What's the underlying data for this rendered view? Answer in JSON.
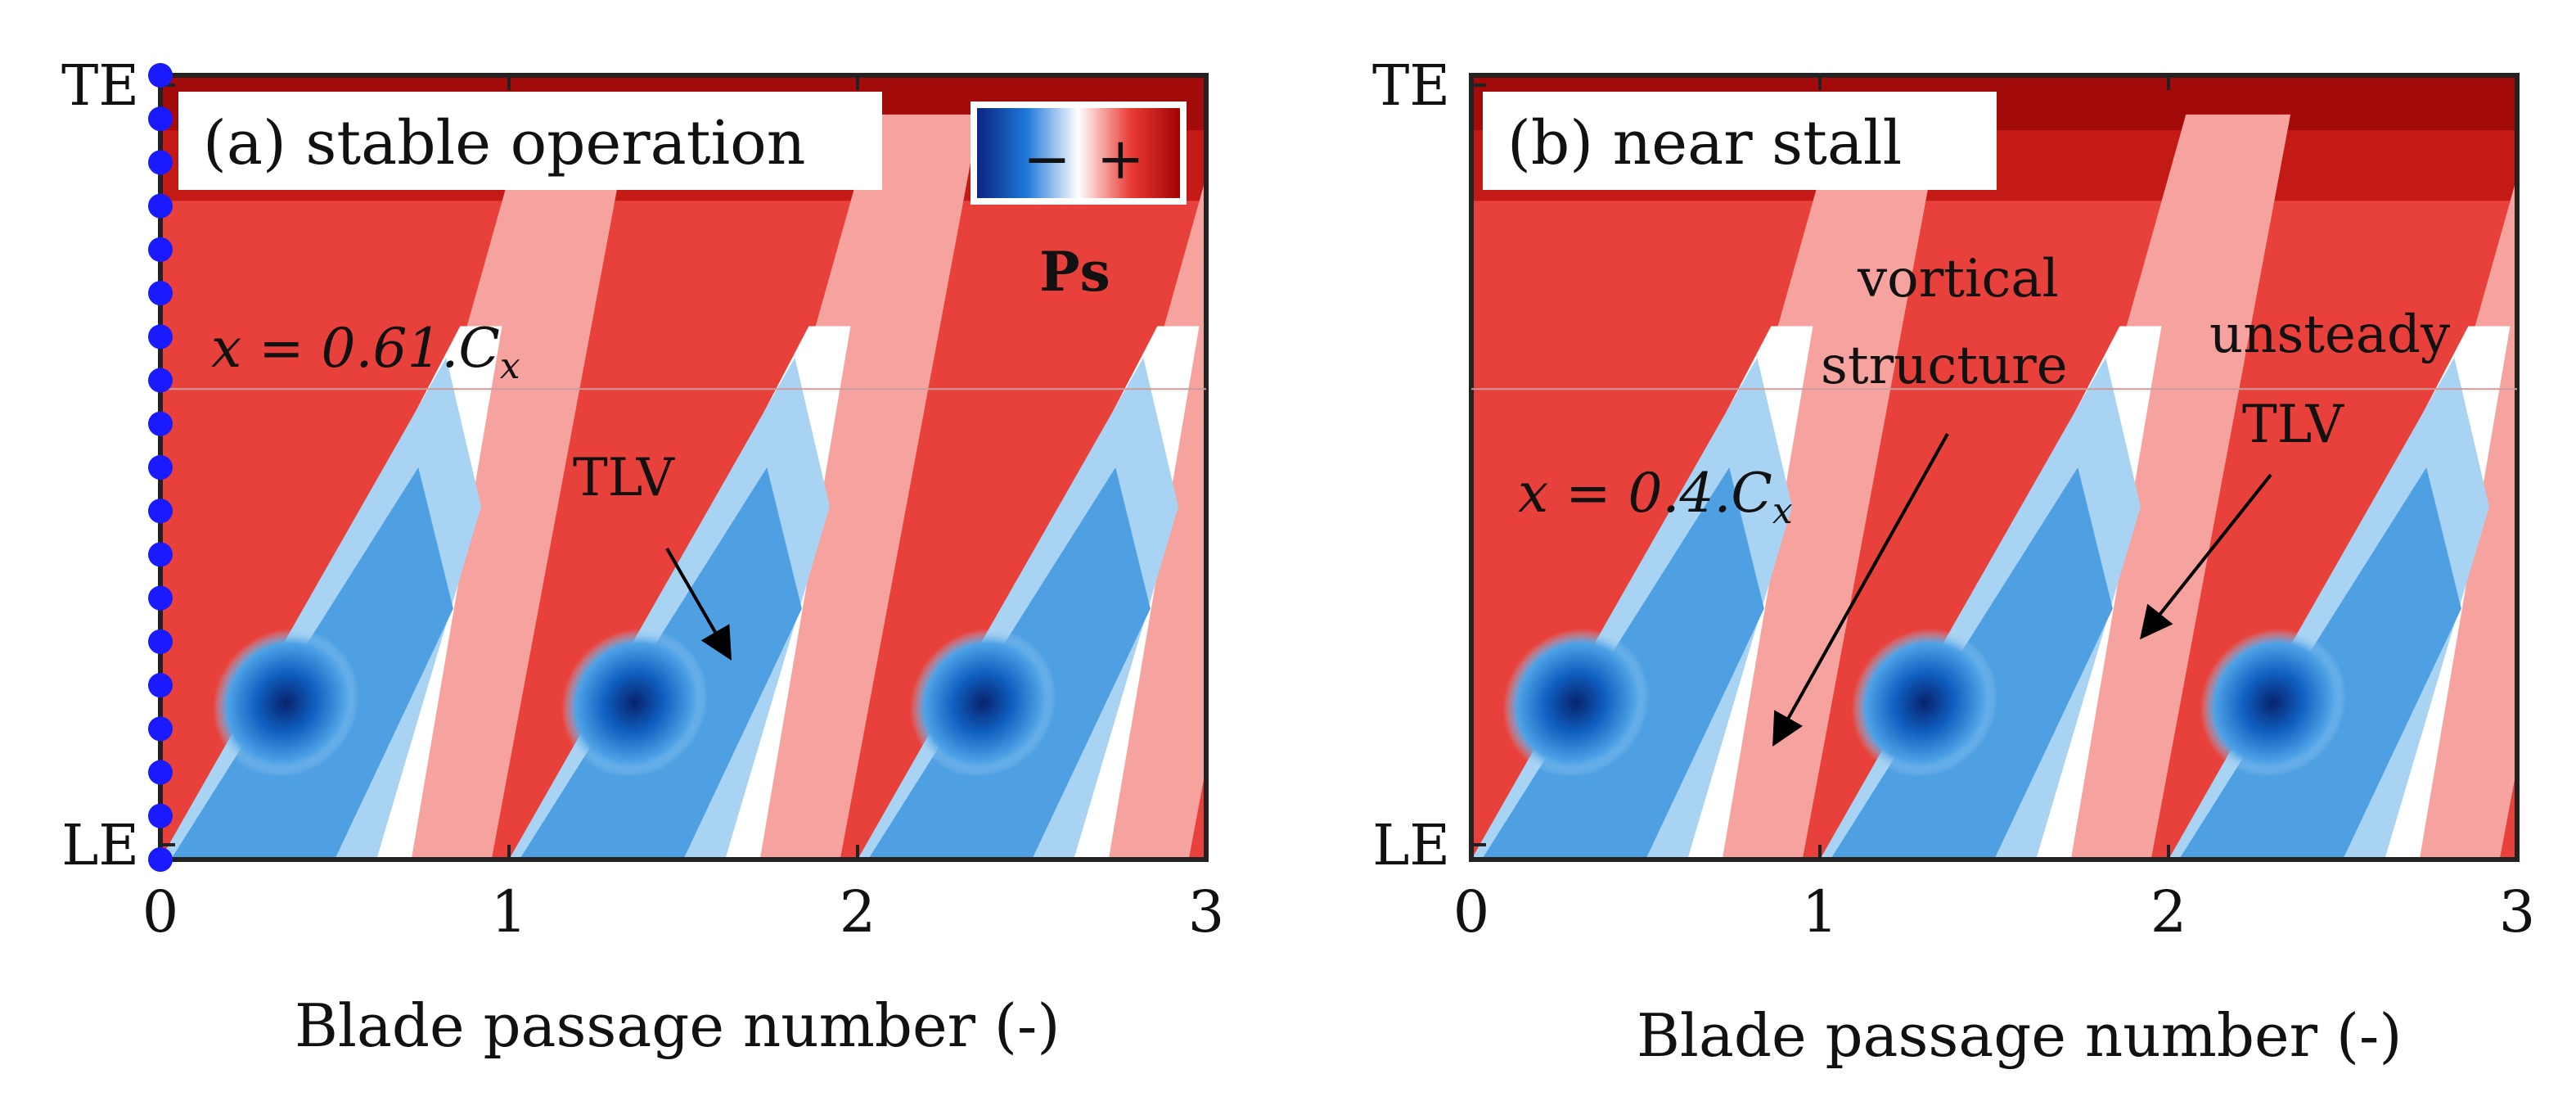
{
  "chart_data": [
    {
      "type": "heatmap",
      "panel_label": "(a) stable operation",
      "quantity": "Ps",
      "xlabel": "Blade passage number (-)",
      "x_ticks": [
        "0",
        "1",
        "2",
        "3"
      ],
      "xlim": [
        0,
        3
      ],
      "y_ticks": [
        "LE",
        "TE"
      ],
      "axial_position": "x = 0.61.C",
      "axial_subscript": "x",
      "colorbar": {
        "minus": "−",
        "plus": "+",
        "low_color": "#0a1f7a",
        "mid_color": "#ffffff",
        "high_color": "#b30000"
      },
      "annotations": [
        {
          "label": "TLV",
          "x": 1.6,
          "y": 0.38
        }
      ],
      "probe_markers": 19,
      "blade_positions": [
        0,
        1,
        2
      ],
      "vortex_lines": [
        0.61,
        1.61,
        2.61
      ]
    },
    {
      "type": "heatmap",
      "panel_label": "(b) near stall",
      "quantity": "Ps",
      "xlabel": "Blade passage number (-)",
      "x_ticks": [
        "0",
        "1",
        "2",
        "3"
      ],
      "xlim": [
        0,
        3
      ],
      "y_ticks": [
        "LE",
        "TE"
      ],
      "axial_position": "x = 0.4.C",
      "axial_subscript": "x",
      "annotations": [
        {
          "label_line1": "vortical",
          "label_line2": "structure",
          "x": 0.85,
          "y": 0.14
        },
        {
          "label_line1": "unsteady",
          "label_line2": "TLV",
          "x": 1.85,
          "y": 0.28
        }
      ],
      "blade_positions": [
        0,
        1,
        2
      ],
      "vortex_lines": [
        0.55,
        1.55,
        2.55
      ]
    }
  ]
}
